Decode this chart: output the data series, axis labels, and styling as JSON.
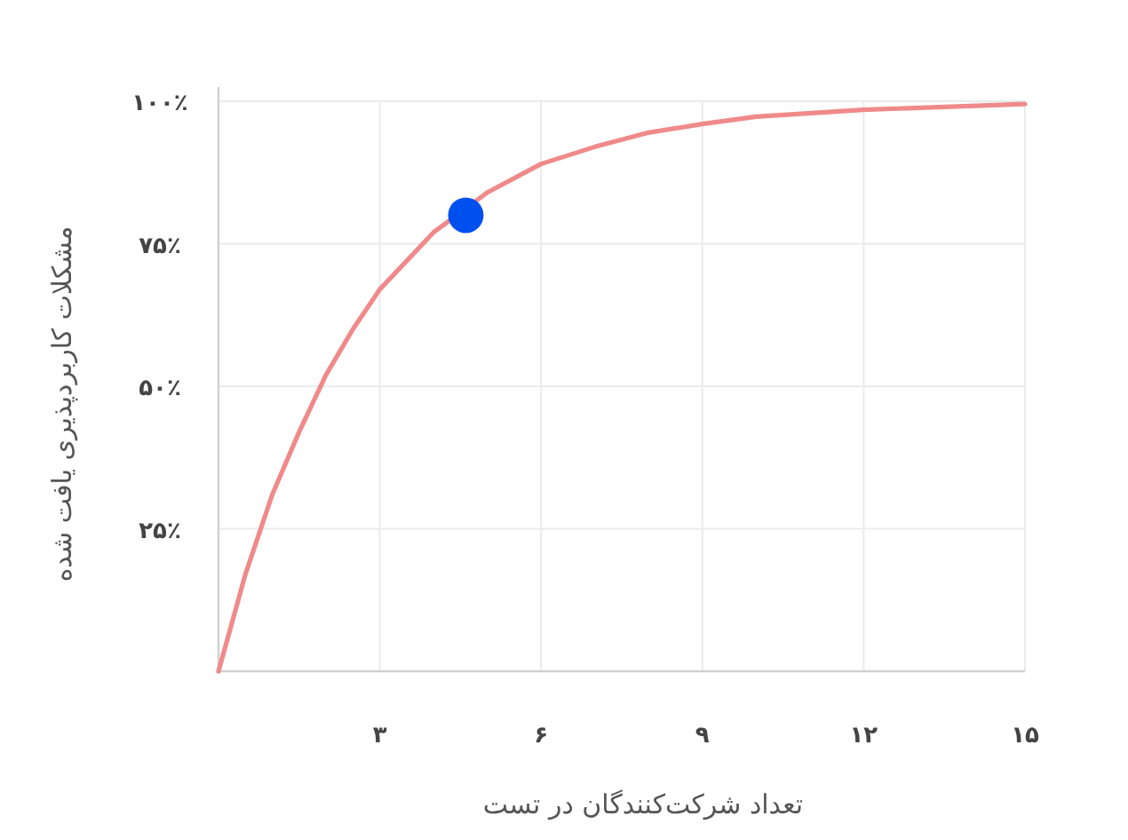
{
  "chart_data": {
    "type": "line",
    "xlabel": "تعداد شرکت‌کنندگان در تست",
    "ylabel": "مشکلات کاربردپذیری یافت شده",
    "xlim": [
      0,
      15
    ],
    "ylim": [
      0,
      100
    ],
    "xticks": [
      {
        "value": 3,
        "label": "۳"
      },
      {
        "value": 6,
        "label": "۶"
      },
      {
        "value": 9,
        "label": "۹"
      },
      {
        "value": 12,
        "label": "۱۲"
      },
      {
        "value": 15,
        "label": "۱۵"
      }
    ],
    "yticks": [
      {
        "value": 25,
        "label": "۲۵٪"
      },
      {
        "value": 50,
        "label": "۵۰٪"
      },
      {
        "value": 75,
        "label": "۷۵٪"
      },
      {
        "value": 100,
        "label": "۱۰۰٪"
      }
    ],
    "grid": true,
    "series": [
      {
        "color": "#f08a8a",
        "marker": "none",
        "x": [
          0,
          0.5,
          1,
          1.5,
          2,
          2.5,
          3,
          4,
          5,
          6,
          7,
          8,
          9,
          10,
          12,
          15
        ],
        "values": [
          0,
          17,
          31,
          42,
          52,
          60,
          67,
          77,
          84,
          89,
          92,
          94.5,
          96,
          97.3,
          98.5,
          99.5
        ]
      },
      {
        "type": "scatter",
        "color": "#0050f0",
        "marker": "circle",
        "x": [
          4.6
        ],
        "values": [
          80
        ]
      }
    ]
  }
}
